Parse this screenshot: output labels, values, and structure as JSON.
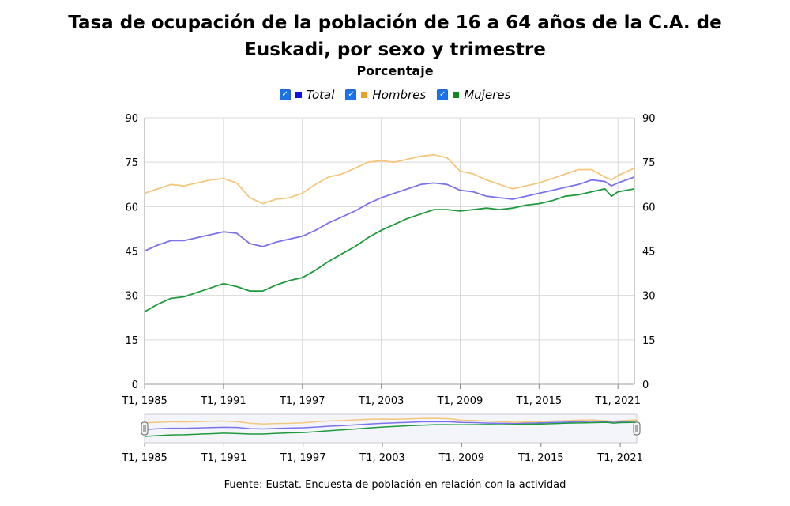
{
  "title_line1": "Tasa de ocupación de la población de 16 a 64 años de la C.A. de",
  "title_line2": "Euskadi, por sexo y trimestre",
  "subtitle": "Porcentaje",
  "source": "Fuente: Eustat. Encuesta de población en relación con la actividad",
  "colors": {
    "Total": "#7b72ee",
    "Hombres": "#f5c77e",
    "Mujeres": "#1e9a3c",
    "Total_legend": "#1010e0",
    "Hombres_legend": "#f0a020",
    "Mujeres_legend": "#108a20"
  },
  "legend": [
    {
      "name": "Total",
      "swatch": "#1010e0"
    },
    {
      "name": "Hombres",
      "swatch": "#f0a020"
    },
    {
      "name": "Mujeres",
      "swatch": "#108a20"
    }
  ],
  "chart_data": {
    "type": "line",
    "title": "Tasa de ocupación de la población de 16 a 64 años de la C.A. de Euskadi, por sexo y trimestre",
    "subtitle": "Porcentaje",
    "x_tick_labels": [
      "T1, 1985",
      "T1, 1991",
      "T1, 1997",
      "T1, 2003",
      "T1, 2009",
      "T1, 2015",
      "T1, 2021"
    ],
    "x_range": [
      1985.0,
      2022.25
    ],
    "y_ticks": [
      0,
      15,
      30,
      45,
      60,
      75,
      90
    ],
    "ylim": [
      0,
      90
    ],
    "grid": true,
    "legend_position": "top-center",
    "series": [
      {
        "name": "Total",
        "x": [
          1985.0,
          1986.0,
          1987.0,
          1988.0,
          1989.0,
          1990.0,
          1991.0,
          1992.0,
          1993.0,
          1994.0,
          1995.0,
          1996.0,
          1997.0,
          1998.0,
          1999.0,
          2000.0,
          2001.0,
          2002.0,
          2003.0,
          2004.0,
          2005.0,
          2006.0,
          2007.0,
          2008.0,
          2009.0,
          2010.0,
          2011.0,
          2012.0,
          2013.0,
          2014.0,
          2015.0,
          2016.0,
          2017.0,
          2018.0,
          2019.0,
          2020.0,
          2020.5,
          2021.0,
          2022.25
        ],
        "values": [
          45,
          47,
          48.5,
          48.5,
          49.5,
          50.5,
          51.5,
          51,
          47.5,
          46.5,
          48,
          49,
          50,
          52,
          54.5,
          56.5,
          58.5,
          61,
          63,
          64.5,
          66,
          67.5,
          68,
          67.5,
          65.5,
          65,
          63.5,
          63,
          62.5,
          63.5,
          64.5,
          65.5,
          66.5,
          67.5,
          69,
          68.5,
          67,
          68,
          70
        ]
      },
      {
        "name": "Hombres",
        "x": [
          1985.0,
          1986.0,
          1987.0,
          1988.0,
          1989.0,
          1990.0,
          1991.0,
          1992.0,
          1993.0,
          1994.0,
          1995.0,
          1996.0,
          1997.0,
          1998.0,
          1999.0,
          2000.0,
          2001.0,
          2002.0,
          2003.0,
          2004.0,
          2005.0,
          2006.0,
          2007.0,
          2008.0,
          2009.0,
          2010.0,
          2011.0,
          2012.0,
          2013.0,
          2014.0,
          2015.0,
          2016.0,
          2017.0,
          2018.0,
          2019.0,
          2020.0,
          2020.5,
          2021.0,
          2022.25
        ],
        "values": [
          64.5,
          66,
          67.5,
          67,
          68,
          69,
          69.5,
          68,
          63,
          61,
          62.5,
          63,
          64.5,
          67.5,
          70,
          71,
          73,
          75,
          75.5,
          75,
          76,
          77,
          77.5,
          76.5,
          72,
          71,
          69,
          67.5,
          66,
          67,
          68,
          69.5,
          71,
          72.5,
          72.5,
          70,
          69,
          70.5,
          73
        ]
      },
      {
        "name": "Mujeres",
        "x": [
          1985.0,
          1986.0,
          1987.0,
          1988.0,
          1989.0,
          1990.0,
          1991.0,
          1992.0,
          1993.0,
          1994.0,
          1995.0,
          1996.0,
          1997.0,
          1998.0,
          1999.0,
          2000.0,
          2001.0,
          2002.0,
          2003.0,
          2004.0,
          2005.0,
          2006.0,
          2007.0,
          2008.0,
          2009.0,
          2010.0,
          2011.0,
          2012.0,
          2013.0,
          2014.0,
          2015.0,
          2016.0,
          2017.0,
          2018.0,
          2019.0,
          2020.0,
          2020.5,
          2021.0,
          2022.25
        ],
        "values": [
          24.5,
          27,
          29,
          29.5,
          31,
          32.5,
          34,
          33,
          31.5,
          31.5,
          33.5,
          35,
          36,
          38.5,
          41.5,
          44,
          46.5,
          49.5,
          52,
          54,
          56,
          57.5,
          59,
          59,
          58.5,
          59,
          59.5,
          59,
          59.5,
          60.5,
          61,
          62,
          63.5,
          64,
          65,
          66,
          63.5,
          65,
          66
        ]
      }
    ]
  }
}
